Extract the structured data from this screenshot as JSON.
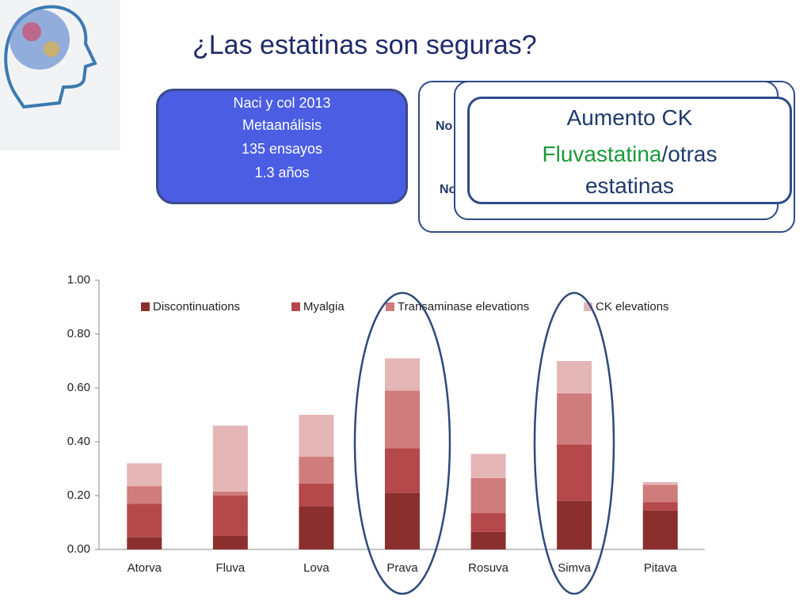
{
  "title": "¿Las estatinas son seguras?",
  "info_box": {
    "lines": [
      "Naci  y col 2013",
      "Metaanálisis",
      "135 ensayos",
      "1.3 años"
    ]
  },
  "callout": {
    "fragments": [
      "No",
      "No"
    ],
    "heading": "Aumento CK",
    "highlight": "Fluvastatina",
    "rest": "/otras estatinas"
  },
  "chart_data": {
    "type": "bar",
    "stacked": true,
    "legend_position": "top",
    "categories": [
      "Atorva",
      "Fluva",
      "Lova",
      "Prava",
      "Rosuva",
      "Simva",
      "Pitava"
    ],
    "series": [
      {
        "name": "Discontinuations",
        "color": "#8b2e2e",
        "values": [
          0.045,
          0.05,
          0.16,
          0.21,
          0.065,
          0.18,
          0.145
        ]
      },
      {
        "name": "Myalgia",
        "color": "#b4484a",
        "values": [
          0.125,
          0.15,
          0.085,
          0.165,
          0.07,
          0.21,
          0.03
        ]
      },
      {
        "name": "Transaminase elevations",
        "color": "#cf7c7c",
        "values": [
          0.065,
          0.015,
          0.1,
          0.215,
          0.13,
          0.19,
          0.065
        ]
      },
      {
        "name": "CK elevations",
        "color": "#e4b6b6",
        "values": [
          0.085,
          0.245,
          0.155,
          0.12,
          0.09,
          0.12,
          0.01
        ]
      }
    ],
    "ylim": [
      0,
      1
    ],
    "yticks": [
      {
        "value": 0,
        "label": "0.00"
      },
      {
        "value": 0.2,
        "label": "0.20"
      },
      {
        "value": 0.4,
        "label": "0.40"
      },
      {
        "value": 0.6,
        "label": "0.60"
      },
      {
        "value": 0.8,
        "label": "0.80"
      },
      {
        "value": 1,
        "label": "1.00"
      }
    ]
  }
}
